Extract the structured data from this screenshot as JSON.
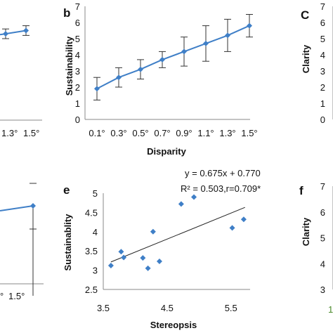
{
  "chart_data": [
    {
      "panel": "a",
      "label": "",
      "type": "line",
      "xlabel": "",
      "ylabel": "",
      "x_tick_labels": [
        "1.3°",
        "1.5°"
      ],
      "series": [
        {
          "x": [
            "1.3°",
            "1.5°"
          ],
          "values": [
            5.3,
            5.5
          ],
          "error": [
            0.3,
            0.3
          ]
        }
      ],
      "color": "#3f7fc7"
    },
    {
      "panel": "b",
      "label": "b",
      "type": "line",
      "xlabel": "Disparity",
      "ylabel": "Sustainability",
      "categories": [
        "0.1°",
        "0.3°",
        "0.5°",
        "0.7°",
        "0.9°",
        "1.1°",
        "1.3°",
        "1.5°"
      ],
      "values": [
        1.9,
        2.6,
        3.1,
        3.7,
        4.2,
        4.7,
        5.2,
        5.8
      ],
      "error": [
        0.7,
        0.6,
        0.6,
        0.5,
        0.9,
        1.1,
        1.0,
        0.7
      ],
      "ylim": [
        0,
        7
      ],
      "yticks": [
        0,
        1,
        2,
        3,
        4,
        5,
        6,
        7
      ],
      "color": "#3f7fc7"
    },
    {
      "panel": "c",
      "label": "C",
      "type": "line",
      "xlabel": "",
      "ylabel": "Clarity",
      "ylim": [
        0,
        7
      ],
      "yticks": [
        0,
        1,
        2,
        3,
        4,
        5,
        6,
        7
      ]
    },
    {
      "panel": "d",
      "label": "",
      "type": "line",
      "xlabel": "",
      "ylabel": "",
      "x_tick_labels": [
        "°",
        "1.5°"
      ],
      "series": [
        {
          "x": [
            "1.5°"
          ],
          "values": [
            4.7
          ],
          "error": [
            1.2
          ]
        }
      ],
      "color": "#3f7fc7"
    },
    {
      "panel": "e",
      "label": "e",
      "type": "scatter",
      "xlabel": "Stereopsis",
      "ylabel": "Sustainablity",
      "x": [
        3.62,
        3.78,
        3.82,
        4.12,
        4.2,
        4.28,
        4.38,
        4.72,
        4.92,
        5.52,
        5.7
      ],
      "y": [
        3.12,
        3.48,
        3.33,
        3.32,
        3.05,
        4.0,
        3.23,
        4.72,
        4.9,
        4.1,
        4.32
      ],
      "trendline": {
        "slope": 0.675,
        "intercept": 0.77
      },
      "equation": "y = 0.675x + 0.770",
      "stats": "R² = 0.503,r=0.709*",
      "xlim": [
        3.5,
        5.8
      ],
      "ylim": [
        2.5,
        5
      ],
      "xticks": [
        "3.5",
        "4.5",
        "5.5"
      ],
      "yticks": [
        "2.5",
        "3",
        "3.5",
        "4",
        "4.5",
        "5"
      ],
      "color": "#3f7fc7"
    },
    {
      "panel": "f",
      "label": "f",
      "type": "scatter",
      "xlabel": "",
      "ylabel": "Clarity",
      "yticks": [
        "3",
        "4",
        "5",
        "6",
        "7"
      ],
      "x_tick_fragment": "1"
    }
  ]
}
